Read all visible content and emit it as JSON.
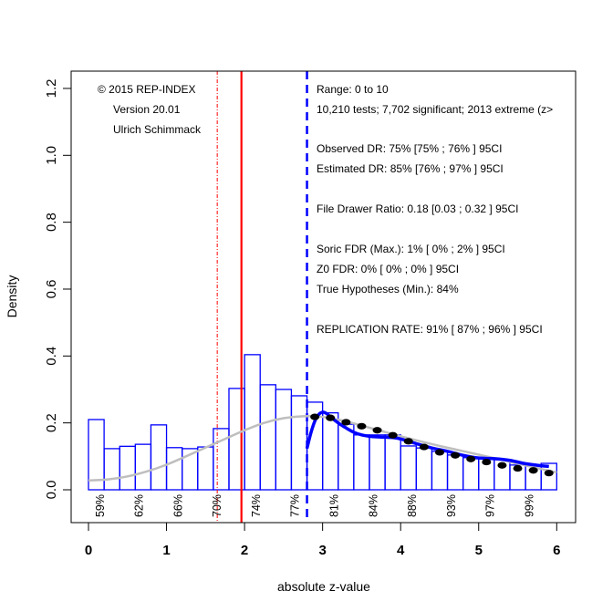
{
  "chart_data": {
    "type": "bar",
    "xlabel": "absolute z-value",
    "ylabel": "Density",
    "xlim": [
      -0.2,
      6.3
    ],
    "ylim": [
      -0.1,
      1.25
    ],
    "x_ticks": [
      0,
      1,
      2,
      3,
      4,
      5,
      6
    ],
    "x_tick_labels": [
      "0",
      "1",
      "2",
      "3",
      "4",
      "5",
      "6"
    ],
    "y_ticks": [
      0.0,
      0.2,
      0.4,
      0.6,
      0.8,
      1.0,
      1.2
    ],
    "y_tick_labels": [
      "0.0",
      "0.2",
      "0.4",
      "0.6",
      "0.8",
      "1.0",
      "1.2"
    ],
    "histogram": {
      "bin_width": 0.2,
      "bin_starts": [
        0.0,
        0.2,
        0.4,
        0.6,
        0.8,
        1.0,
        1.2,
        1.4,
        1.6,
        1.8,
        2.0,
        2.2,
        2.4,
        2.6,
        2.8,
        3.0,
        3.2,
        3.4,
        3.6,
        3.8,
        4.0,
        4.2,
        4.4,
        4.6,
        4.8,
        5.0,
        5.2,
        5.4,
        5.6,
        5.8
      ],
      "density": [
        0.21,
        0.123,
        0.13,
        0.136,
        0.194,
        0.126,
        0.123,
        0.128,
        0.183,
        0.303,
        0.404,
        0.314,
        0.3,
        0.281,
        0.262,
        0.23,
        0.196,
        0.164,
        0.164,
        0.164,
        0.131,
        0.125,
        0.115,
        0.104,
        0.096,
        0.093,
        0.09,
        0.074,
        0.071,
        0.079
      ],
      "color": "#0000ff"
    },
    "grey_curve": {
      "name": "fitted density (all z)",
      "color": "#bebebe",
      "x": [
        0.0,
        0.25,
        0.5,
        0.75,
        1.0,
        1.25,
        1.5,
        1.75,
        2.0,
        2.25,
        2.5,
        2.75,
        3.0,
        3.25,
        3.5,
        3.75,
        4.0,
        4.25,
        4.5,
        4.75,
        5.0,
        5.25,
        5.5,
        5.75,
        6.0
      ],
      "y": [
        0.028,
        0.031,
        0.04,
        0.055,
        0.075,
        0.1,
        0.126,
        0.152,
        0.178,
        0.2,
        0.214,
        0.22,
        0.218,
        0.207,
        0.192,
        0.176,
        0.16,
        0.145,
        0.131,
        0.118,
        0.105,
        0.092,
        0.078,
        0.065,
        0.052
      ]
    },
    "blue_curve": {
      "name": "observed density (z > 2.8)",
      "color": "#0000ff",
      "x": [
        2.8,
        2.85,
        2.9,
        2.95,
        3.0,
        3.05,
        3.1,
        3.2,
        3.3,
        3.4,
        3.5,
        3.6,
        3.7,
        3.8,
        3.9,
        4.0,
        4.2,
        4.4,
        4.6,
        4.8,
        5.0,
        5.2,
        5.4,
        5.6,
        5.8,
        5.9
      ],
      "y": [
        0.124,
        0.17,
        0.205,
        0.225,
        0.232,
        0.228,
        0.218,
        0.2,
        0.185,
        0.172,
        0.164,
        0.16,
        0.158,
        0.157,
        0.156,
        0.152,
        0.138,
        0.125,
        0.115,
        0.103,
        0.095,
        0.093,
        0.088,
        0.078,
        0.072,
        0.07
      ]
    },
    "black_dots": {
      "name": "model fit (dotted)",
      "color": "#000000",
      "x": [
        2.9,
        3.1,
        3.3,
        3.5,
        3.7,
        3.9,
        4.1,
        4.3,
        4.5,
        4.7,
        4.9,
        5.1,
        5.3,
        5.5,
        5.7,
        5.9
      ],
      "y": [
        0.218,
        0.215,
        0.202,
        0.19,
        0.178,
        0.163,
        0.145,
        0.128,
        0.112,
        0.103,
        0.092,
        0.083,
        0.073,
        0.064,
        0.058,
        0.05
      ]
    },
    "vertical_lines": [
      {
        "name": "z-1.65 threshold",
        "x": 1.65,
        "color": "#ff0000",
        "style": "dashdot"
      },
      {
        "name": "z-1.96 significance",
        "x": 1.96,
        "color": "#ff0000",
        "style": "solid"
      },
      {
        "name": "z-2.8 selection",
        "x": 2.8,
        "color": "#0000ff",
        "style": "dashed"
      }
    ],
    "power_labels": {
      "x": [
        0.15,
        0.65,
        1.15,
        1.65,
        2.15,
        2.65,
        3.15,
        3.65,
        4.15,
        4.65,
        5.15,
        5.65
      ],
      "labels": [
        "59%",
        "62%",
        "66%",
        "70%",
        "74%",
        "77%",
        "81%",
        "84%",
        "88%",
        "93%",
        "97%",
        "99%"
      ]
    },
    "legend_placement": "none",
    "grid": false
  },
  "credits": {
    "line1": "© 2015 REP-INDEX",
    "line2": "Version 20.01",
    "line3": "Ulrich Schimmack"
  },
  "stats": {
    "range": "Range: 0 to 10",
    "tests": "10,210 tests; 7,702 significant; 2013 extreme (z>",
    "observed_dr": "Observed DR: 75% [75% ; 76% ] 95CI",
    "estimated_dr": "Estimated DR: 85% [76% ; 97% ] 95CI",
    "file_drawer": "File Drawer Ratio: 0.18 [0.03 ; 0.32 ] 95CI",
    "soric_fdr": "Soric FDR (Max.): 1% [ 0% ; 2% ] 95CI",
    "z0_fdr": "Z0 FDR: 0% [ 0% ; 0% ] 95CI",
    "true_hyp": "True Hypotheses (Min.): 84%",
    "replication": "REPLICATION RATE: 91% [ 87% ; 96% ] 95CI"
  }
}
